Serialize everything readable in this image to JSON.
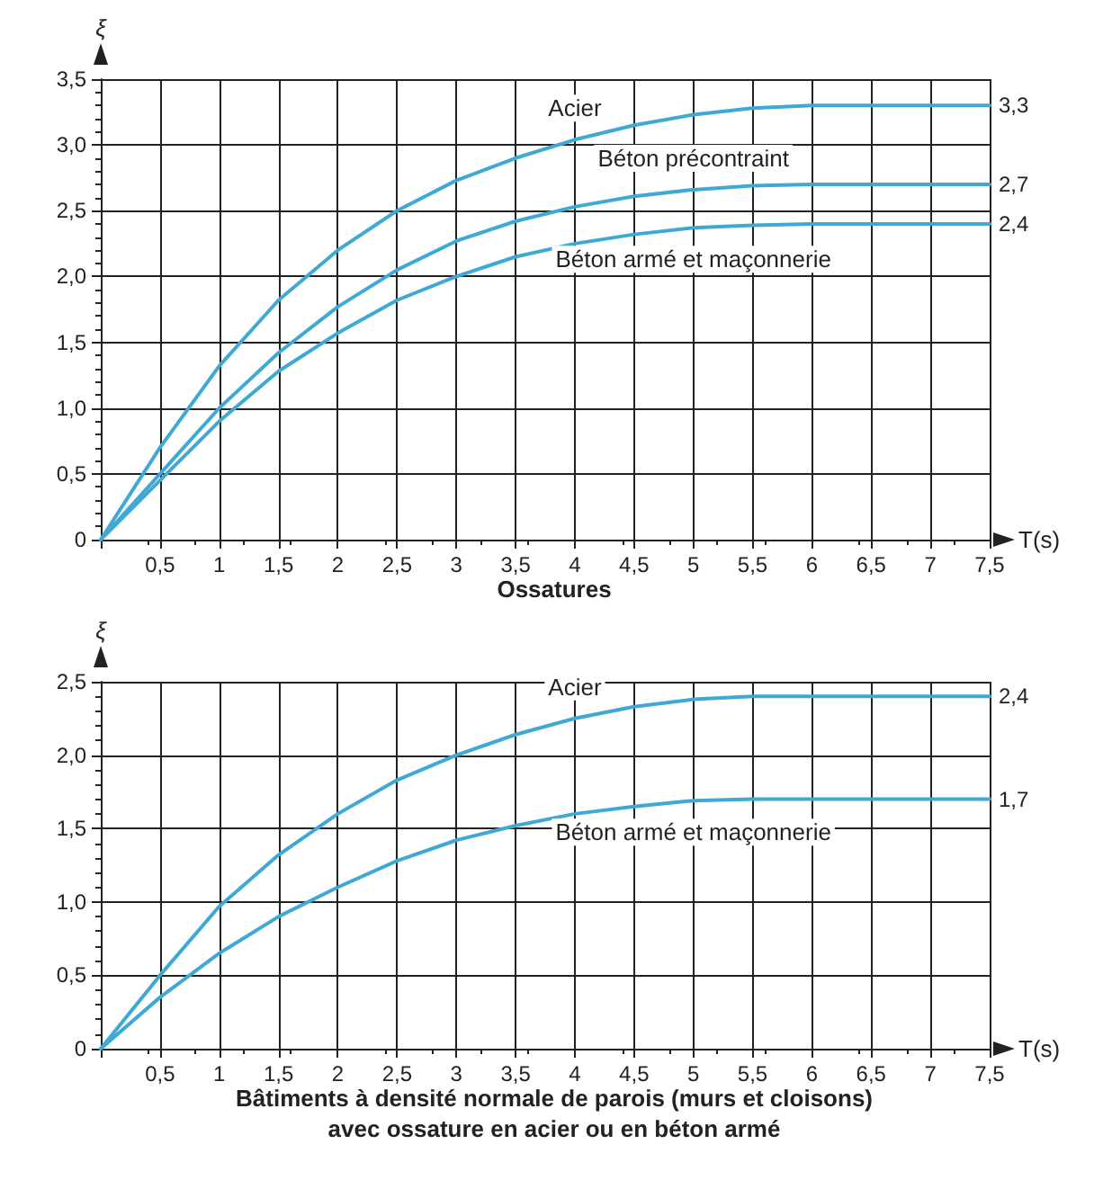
{
  "chart_data": [
    {
      "type": "line",
      "title": "Ossatures",
      "xlabel": "T(s)",
      "ylabel": "ξ",
      "x": [
        0,
        0.5,
        1,
        1.5,
        2,
        2.5,
        3,
        3.5,
        4,
        4.5,
        5,
        5.5,
        6,
        6.5,
        7,
        7.5
      ],
      "series": [
        {
          "name": "Acier",
          "color": "#3fa9d6",
          "values": [
            0,
            0.7,
            1.32,
            1.82,
            2.2,
            2.5,
            2.73,
            2.9,
            3.04,
            3.15,
            3.23,
            3.28,
            3.3,
            3.3,
            3.3,
            3.3
          ],
          "value_labels": [
            null,
            null,
            null,
            null,
            null,
            null,
            null,
            null,
            null,
            null,
            null,
            null,
            null,
            null,
            null,
            "3,3"
          ]
        },
        {
          "name": "Béton précontraint",
          "color": "#3fa9d6",
          "values": [
            0,
            0.5,
            1.0,
            1.42,
            1.77,
            2.05,
            2.27,
            2.42,
            2.53,
            2.61,
            2.66,
            2.69,
            2.7,
            2.7,
            2.7,
            2.7
          ],
          "value_labels": [
            null,
            null,
            null,
            null,
            null,
            null,
            null,
            null,
            null,
            null,
            null,
            null,
            null,
            null,
            null,
            "2,7"
          ]
        },
        {
          "name": "Béton armé et maçonnerie",
          "color": "#3fa9d6",
          "values": [
            0,
            0.45,
            0.9,
            1.28,
            1.57,
            1.82,
            2.0,
            2.15,
            2.25,
            2.32,
            2.37,
            2.39,
            2.4,
            2.4,
            2.4,
            2.4
          ],
          "value_labels": [
            null,
            null,
            null,
            null,
            null,
            null,
            null,
            null,
            null,
            null,
            null,
            null,
            null,
            null,
            null,
            "2,4"
          ]
        }
      ],
      "xlim": [
        0,
        7.5
      ],
      "xticks": [
        {
          "value": 0,
          "label": null
        },
        {
          "value": 0.5,
          "label": "0,5"
        },
        1,
        {
          "value": 1.5,
          "label": "1,5"
        },
        2,
        {
          "value": 2.5,
          "label": "2,5"
        },
        3,
        {
          "value": 3.5,
          "label": "3,5"
        },
        4,
        {
          "value": 4.5,
          "label": "4,5"
        },
        5,
        {
          "value": 5.5,
          "label": "5,5"
        },
        6,
        {
          "value": 6.5,
          "label": "6,5"
        },
        7,
        {
          "value": 7.5,
          "label": "7,5"
        }
      ],
      "ylim": [
        0,
        3.5
      ],
      "yticks": [
        0,
        {
          "value": 0.5,
          "label": "0,5"
        },
        {
          "value": 1,
          "label": "1,0"
        },
        {
          "value": 1.5,
          "label": "1,5"
        },
        {
          "value": 2,
          "label": "2,0"
        },
        {
          "value": 2.5,
          "label": "2,5"
        },
        {
          "value": 3,
          "label": "3,0"
        },
        {
          "value": 3.5,
          "label": "3,5"
        }
      ],
      "grid": true,
      "legend": false,
      "marker": "none",
      "line_style": "solid"
    },
    {
      "type": "line",
      "title": "Bâtiments à densité normale de parois (murs et cloisons)\navec ossature en acier ou en béton armé",
      "xlabel": "T(s)",
      "ylabel": "ξ",
      "x": [
        0,
        0.5,
        1,
        1.5,
        2,
        2.5,
        3,
        3.5,
        4,
        4.5,
        5,
        5.5,
        6,
        6.5,
        7,
        7.5
      ],
      "series": [
        {
          "name": "Acier",
          "color": "#3fa9d6",
          "values": [
            0,
            0.5,
            0.97,
            1.32,
            1.6,
            1.83,
            2.0,
            2.14,
            2.25,
            2.33,
            2.38,
            2.4,
            2.4,
            2.4,
            2.4,
            2.4
          ],
          "value_labels": [
            null,
            null,
            null,
            null,
            null,
            null,
            null,
            null,
            null,
            null,
            null,
            null,
            null,
            null,
            null,
            "2,4"
          ]
        },
        {
          "name": "Béton armé et maçonnerie",
          "color": "#3fa9d6",
          "values": [
            0,
            0.35,
            0.65,
            0.9,
            1.1,
            1.28,
            1.42,
            1.52,
            1.6,
            1.65,
            1.69,
            1.7,
            1.7,
            1.7,
            1.7,
            1.7
          ],
          "value_labels": [
            null,
            null,
            null,
            null,
            null,
            null,
            null,
            null,
            null,
            null,
            null,
            null,
            null,
            null,
            null,
            "1,7"
          ]
        }
      ],
      "xlim": [
        0,
        7.5
      ],
      "xticks": [
        {
          "value": 0,
          "label": null
        },
        {
          "value": 0.5,
          "label": "0,5"
        },
        1,
        {
          "value": 1.5,
          "label": "1,5"
        },
        2,
        {
          "value": 2.5,
          "label": "2,5"
        },
        3,
        {
          "value": 3.5,
          "label": "3,5"
        },
        4,
        {
          "value": 4.5,
          "label": "4,5"
        },
        5,
        {
          "value": 5.5,
          "label": "5,5"
        },
        6,
        {
          "value": 6.5,
          "label": "6,5"
        },
        7,
        {
          "value": 7.5,
          "label": "7,5"
        }
      ],
      "ylim": [
        0,
        2.5
      ],
      "yticks": [
        0,
        {
          "value": 0.5,
          "label": "0,5"
        },
        {
          "value": 1,
          "label": "1,0"
        },
        {
          "value": 1.5,
          "label": "1,5"
        },
        {
          "value": 2,
          "label": "2,0"
        },
        {
          "value": 2.5,
          "label": "2,5"
        }
      ],
      "grid": true,
      "legend": false,
      "marker": "none",
      "line_style": "solid"
    }
  ]
}
